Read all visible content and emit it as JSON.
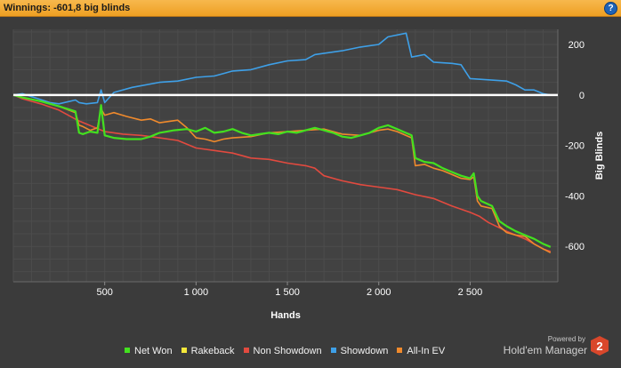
{
  "header": {
    "title": "Winnings:  -601,8 big blinds",
    "help_label": "?"
  },
  "chart_data": {
    "type": "line",
    "title": "",
    "xlabel": "Hands",
    "ylabel": "Big Blinds",
    "xlim": [
      0,
      2980
    ],
    "ylim": [
      -740,
      260
    ],
    "x_ticks": [
      500,
      1000,
      1500,
      2000,
      2500
    ],
    "x_tick_labels": [
      "500",
      "1 000",
      "1 500",
      "2 000",
      "2 500"
    ],
    "y_ticks": [
      200,
      0,
      -200,
      -400,
      -600
    ],
    "y_tick_labels": [
      "200",
      "0",
      "-200",
      "-400",
      "-600"
    ],
    "grid": true,
    "legend_position": "bottom",
    "series": [
      {
        "name": "Net Won",
        "color": "#43e01f",
        "points": [
          [
            0,
            0
          ],
          [
            50,
            -10
          ],
          [
            150,
            -25
          ],
          [
            250,
            -45
          ],
          [
            340,
            -65
          ],
          [
            360,
            -150
          ],
          [
            380,
            -155
          ],
          [
            420,
            -145
          ],
          [
            460,
            -150
          ],
          [
            480,
            -40
          ],
          [
            500,
            -160
          ],
          [
            550,
            -170
          ],
          [
            620,
            -175
          ],
          [
            700,
            -175
          ],
          [
            750,
            -165
          ],
          [
            800,
            -150
          ],
          [
            880,
            -140
          ],
          [
            950,
            -135
          ],
          [
            1000,
            -145
          ],
          [
            1050,
            -130
          ],
          [
            1100,
            -150
          ],
          [
            1150,
            -145
          ],
          [
            1200,
            -135
          ],
          [
            1250,
            -150
          ],
          [
            1300,
            -160
          ],
          [
            1350,
            -155
          ],
          [
            1400,
            -150
          ],
          [
            1450,
            -155
          ],
          [
            1500,
            -145
          ],
          [
            1550,
            -150
          ],
          [
            1600,
            -140
          ],
          [
            1650,
            -130
          ],
          [
            1700,
            -140
          ],
          [
            1750,
            -150
          ],
          [
            1800,
            -165
          ],
          [
            1850,
            -170
          ],
          [
            1900,
            -160
          ],
          [
            1950,
            -150
          ],
          [
            2000,
            -130
          ],
          [
            2050,
            -120
          ],
          [
            2100,
            -135
          ],
          [
            2180,
            -160
          ],
          [
            2200,
            -250
          ],
          [
            2250,
            -265
          ],
          [
            2300,
            -270
          ],
          [
            2350,
            -290
          ],
          [
            2400,
            -305
          ],
          [
            2450,
            -320
          ],
          [
            2500,
            -330
          ],
          [
            2520,
            -310
          ],
          [
            2540,
            -400
          ],
          [
            2560,
            -420
          ],
          [
            2620,
            -440
          ],
          [
            2660,
            -500
          ],
          [
            2700,
            -520
          ],
          [
            2750,
            -540
          ],
          [
            2800,
            -555
          ],
          [
            2850,
            -570
          ],
          [
            2900,
            -590
          ],
          [
            2940,
            -601.8
          ]
        ]
      },
      {
        "name": "Rakeback",
        "color": "#f5e83a",
        "points": [
          [
            0,
            0
          ],
          [
            2940,
            0
          ]
        ]
      },
      {
        "name": "Non Showdown",
        "color": "#e24a3f",
        "points": [
          [
            0,
            0
          ],
          [
            50,
            -15
          ],
          [
            150,
            -35
          ],
          [
            250,
            -60
          ],
          [
            350,
            -100
          ],
          [
            450,
            -130
          ],
          [
            500,
            -145
          ],
          [
            600,
            -155
          ],
          [
            700,
            -160
          ],
          [
            800,
            -170
          ],
          [
            900,
            -180
          ],
          [
            1000,
            -210
          ],
          [
            1100,
            -220
          ],
          [
            1200,
            -230
          ],
          [
            1300,
            -250
          ],
          [
            1400,
            -255
          ],
          [
            1500,
            -270
          ],
          [
            1600,
            -280
          ],
          [
            1650,
            -290
          ],
          [
            1700,
            -320
          ],
          [
            1800,
            -340
          ],
          [
            1900,
            -355
          ],
          [
            2000,
            -365
          ],
          [
            2100,
            -375
          ],
          [
            2200,
            -395
          ],
          [
            2300,
            -410
          ],
          [
            2400,
            -440
          ],
          [
            2500,
            -465
          ],
          [
            2550,
            -480
          ],
          [
            2600,
            -505
          ],
          [
            2700,
            -540
          ],
          [
            2800,
            -570
          ],
          [
            2850,
            -590
          ],
          [
            2900,
            -610
          ],
          [
            2940,
            -620
          ]
        ]
      },
      {
        "name": "Showdown",
        "color": "#3ea0e8",
        "points": [
          [
            0,
            0
          ],
          [
            50,
            5
          ],
          [
            200,
            -30
          ],
          [
            250,
            -35
          ],
          [
            340,
            -20
          ],
          [
            360,
            -30
          ],
          [
            400,
            -35
          ],
          [
            460,
            -30
          ],
          [
            480,
            20
          ],
          [
            500,
            -30
          ],
          [
            550,
            10
          ],
          [
            650,
            30
          ],
          [
            800,
            50
          ],
          [
            900,
            55
          ],
          [
            1000,
            70
          ],
          [
            1100,
            75
          ],
          [
            1200,
            95
          ],
          [
            1300,
            100
          ],
          [
            1400,
            120
          ],
          [
            1500,
            135
          ],
          [
            1600,
            140
          ],
          [
            1650,
            160
          ],
          [
            1800,
            175
          ],
          [
            1900,
            190
          ],
          [
            2000,
            200
          ],
          [
            2050,
            230
          ],
          [
            2150,
            245
          ],
          [
            2180,
            150
          ],
          [
            2250,
            160
          ],
          [
            2300,
            130
          ],
          [
            2400,
            125
          ],
          [
            2450,
            120
          ],
          [
            2500,
            65
          ],
          [
            2600,
            60
          ],
          [
            2700,
            55
          ],
          [
            2750,
            40
          ],
          [
            2800,
            20
          ],
          [
            2850,
            20
          ],
          [
            2900,
            5
          ],
          [
            2940,
            0
          ]
        ]
      },
      {
        "name": "All-In EV",
        "color": "#f08a2c",
        "points": [
          [
            0,
            0
          ],
          [
            50,
            -10
          ],
          [
            150,
            -25
          ],
          [
            250,
            -45
          ],
          [
            340,
            -70
          ],
          [
            360,
            -120
          ],
          [
            380,
            -125
          ],
          [
            420,
            -140
          ],
          [
            460,
            -130
          ],
          [
            480,
            -55
          ],
          [
            500,
            -80
          ],
          [
            550,
            -70
          ],
          [
            620,
            -85
          ],
          [
            700,
            -100
          ],
          [
            750,
            -95
          ],
          [
            800,
            -110
          ],
          [
            900,
            -100
          ],
          [
            950,
            -130
          ],
          [
            1000,
            -170
          ],
          [
            1050,
            -175
          ],
          [
            1100,
            -185
          ],
          [
            1150,
            -175
          ],
          [
            1200,
            -170
          ],
          [
            1300,
            -165
          ],
          [
            1400,
            -150
          ],
          [
            1500,
            -145
          ],
          [
            1600,
            -140
          ],
          [
            1700,
            -135
          ],
          [
            1800,
            -155
          ],
          [
            1900,
            -160
          ],
          [
            1950,
            -150
          ],
          [
            2000,
            -140
          ],
          [
            2050,
            -135
          ],
          [
            2100,
            -145
          ],
          [
            2180,
            -170
          ],
          [
            2200,
            -280
          ],
          [
            2250,
            -275
          ],
          [
            2300,
            -290
          ],
          [
            2350,
            -300
          ],
          [
            2400,
            -315
          ],
          [
            2450,
            -330
          ],
          [
            2500,
            -335
          ],
          [
            2520,
            -325
          ],
          [
            2540,
            -420
          ],
          [
            2560,
            -440
          ],
          [
            2620,
            -450
          ],
          [
            2660,
            -520
          ],
          [
            2700,
            -545
          ],
          [
            2750,
            -555
          ],
          [
            2800,
            -560
          ],
          [
            2850,
            -590
          ],
          [
            2900,
            -610
          ],
          [
            2940,
            -625
          ]
        ]
      }
    ]
  }
}
